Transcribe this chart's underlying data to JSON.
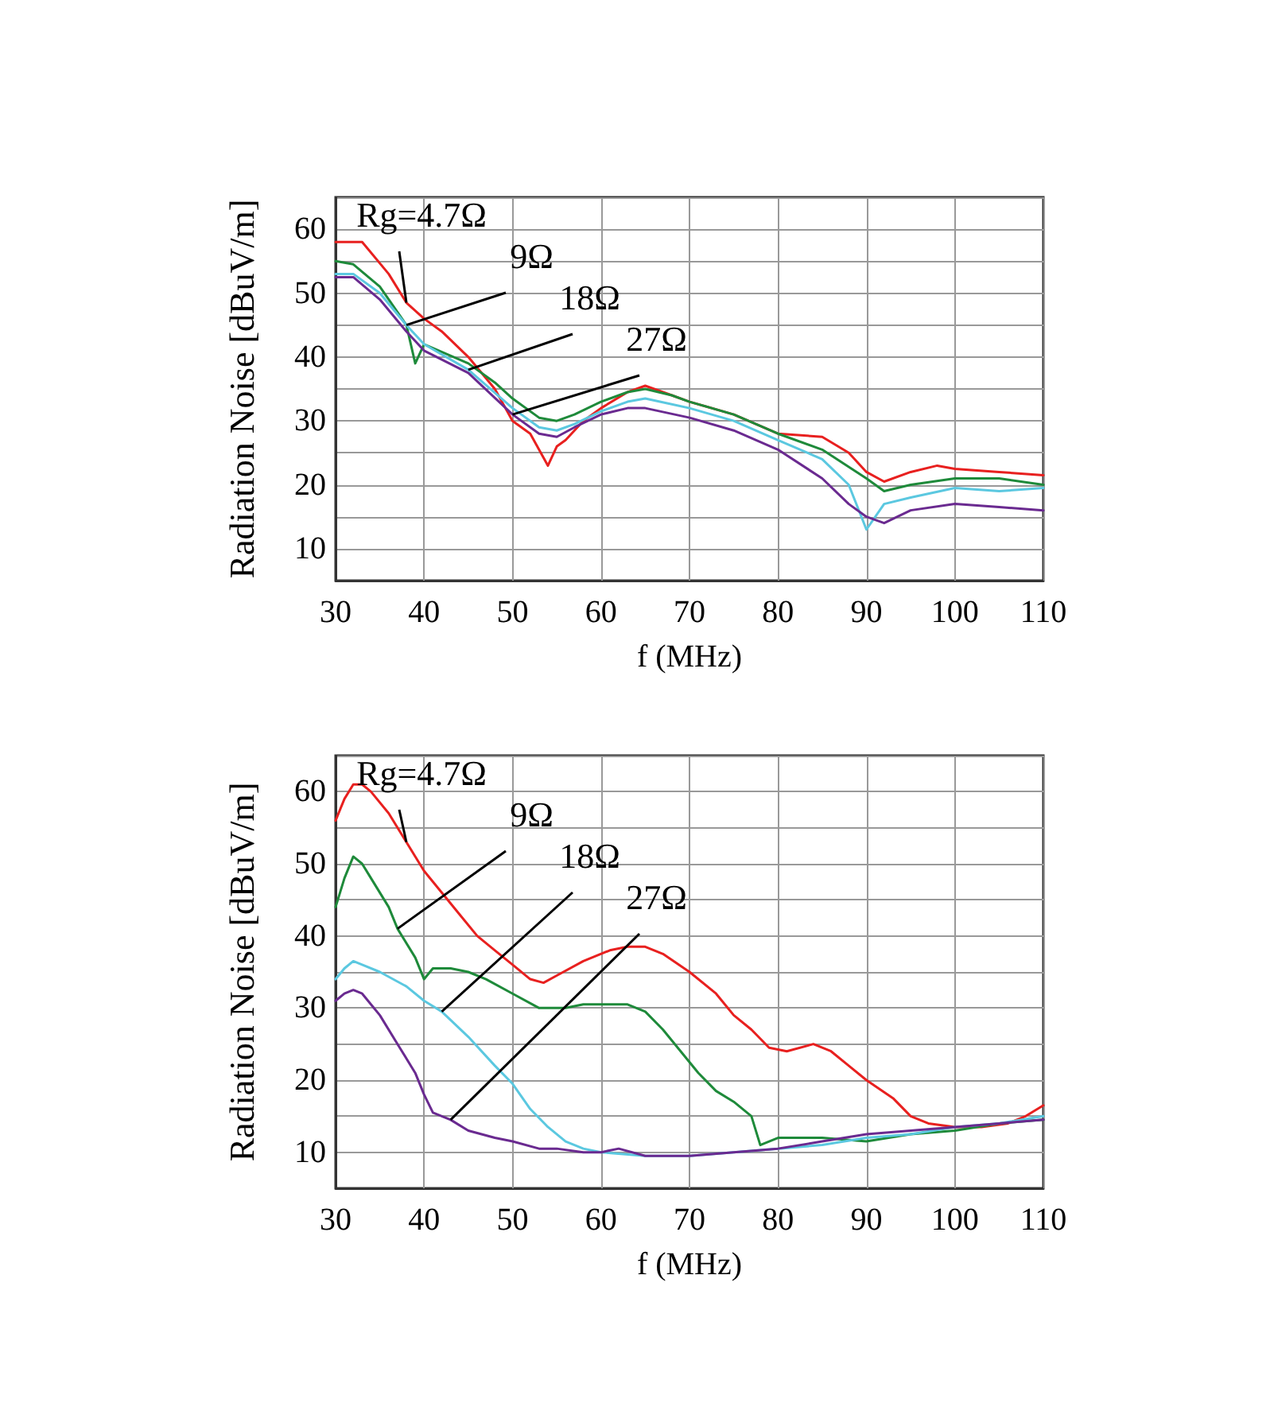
{
  "chart_data": [
    {
      "type": "line",
      "xlabel": "f (MHz)",
      "ylabel": "Radiation Noise [dBuV/m]",
      "xlim": [
        30,
        110
      ],
      "ylim": [
        5,
        65
      ],
      "xticks": [
        30,
        40,
        50,
        60,
        70,
        80,
        90,
        100,
        110
      ],
      "yticks": [
        10,
        {
          "value": 15,
          "label": null
        },
        20,
        {
          "value": 25,
          "label": null
        },
        30,
        {
          "value": 35,
          "label": null
        },
        40,
        {
          "value": 45,
          "label": null
        },
        50,
        {
          "value": 55,
          "label": null
        },
        60
      ],
      "grid": true,
      "marker": "none",
      "line_style": "solid",
      "series": [
        {
          "color": "#e8201f",
          "x": [
            30,
            33,
            36,
            38,
            40,
            42,
            45,
            48,
            50,
            52,
            54,
            55,
            56,
            58,
            60,
            63,
            65,
            68,
            70,
            75,
            80,
            85,
            88,
            90,
            92,
            95,
            98,
            100,
            105,
            110
          ],
          "values": [
            58,
            58,
            53,
            48.5,
            46,
            44,
            40,
            35,
            30,
            28,
            23,
            26,
            27,
            30,
            32,
            34.5,
            35.5,
            34,
            33,
            31,
            28,
            27.5,
            25,
            22,
            20.5,
            22,
            23,
            22.5,
            22,
            21.5
          ]
        },
        {
          "color": "#1e8a3a",
          "x": [
            30,
            32,
            35,
            38,
            39,
            40,
            45,
            48,
            50,
            53,
            55,
            57,
            60,
            63,
            65,
            68,
            70,
            75,
            80,
            85,
            90,
            92,
            95,
            100,
            105,
            110
          ],
          "values": [
            55,
            54.5,
            51,
            45,
            39,
            42,
            39,
            36,
            33.5,
            30.5,
            30,
            31,
            33,
            34.5,
            35,
            34,
            33,
            31,
            28,
            25.5,
            21,
            19,
            20,
            21,
            21,
            20
          ]
        },
        {
          "color": "#5bc8e0",
          "x": [
            30,
            32,
            35,
            38,
            40,
            45,
            50,
            53,
            55,
            57,
            60,
            63,
            65,
            70,
            75,
            80,
            85,
            88,
            90,
            92,
            95,
            100,
            105,
            110
          ],
          "values": [
            53,
            53,
            50,
            45,
            42,
            38,
            32,
            29,
            28.5,
            29.5,
            31.5,
            33,
            33.5,
            32,
            30,
            27,
            24,
            20,
            13,
            17,
            18,
            19.5,
            19,
            19.5
          ]
        },
        {
          "color": "#6a2a90",
          "x": [
            30,
            32,
            35,
            38,
            40,
            45,
            50,
            53,
            55,
            57,
            60,
            63,
            65,
            70,
            75,
            80,
            85,
            88,
            90,
            92,
            95,
            100,
            105,
            110
          ],
          "values": [
            52.5,
            52.5,
            49,
            44,
            41,
            37.5,
            31,
            28,
            27.5,
            29,
            31,
            32,
            32,
            30.5,
            28.5,
            25.5,
            21,
            17,
            15,
            14,
            16,
            17,
            16.5,
            16
          ]
        }
      ],
      "annotations": [
        {
          "text": "Rg=4.7Ω",
          "x": 38,
          "y": 48.5
        },
        {
          "text": "9Ω",
          "x": 38,
          "y": 45
        },
        {
          "text": "18Ω",
          "x": 45,
          "y": 38
        },
        {
          "text": "27Ω",
          "x": 50,
          "y": 31
        }
      ]
    },
    {
      "type": "line",
      "xlabel": "f (MHz)",
      "ylabel": "Radiation Noise [dBuV/m]",
      "xlim": [
        30,
        110
      ],
      "ylim": [
        5,
        65
      ],
      "xticks": [
        30,
        40,
        50,
        60,
        70,
        80,
        90,
        100,
        110
      ],
      "yticks": [
        10,
        {
          "value": 15,
          "label": null
        },
        20,
        {
          "value": 25,
          "label": null
        },
        30,
        {
          "value": 35,
          "label": null
        },
        40,
        {
          "value": 45,
          "label": null
        },
        50,
        {
          "value": 55,
          "label": null
        },
        60
      ],
      "grid": true,
      "marker": "none",
      "line_style": "solid",
      "series": [
        {
          "color": "#e8201f",
          "x": [
            30,
            31,
            32,
            33,
            34,
            36,
            38,
            40,
            42,
            44,
            46,
            48,
            50,
            52,
            53.5,
            55,
            58,
            61,
            63,
            65,
            67,
            70,
            73,
            75,
            77,
            79,
            81,
            84,
            86,
            88,
            90,
            93,
            95,
            97,
            100,
            103,
            106,
            108,
            110
          ],
          "values": [
            56,
            59,
            61,
            61,
            60,
            57,
            53,
            49,
            46,
            43,
            40,
            38,
            36,
            34,
            33.5,
            34.5,
            36.5,
            38,
            38.5,
            38.5,
            37.5,
            35,
            32,
            29,
            27,
            24.5,
            24,
            25,
            24,
            22,
            20,
            17.5,
            15,
            14,
            13.5,
            13.5,
            14,
            15,
            16.5
          ]
        },
        {
          "color": "#1e8a3a",
          "x": [
            30,
            31,
            32,
            33,
            34,
            36,
            37,
            39,
            40,
            41,
            43,
            45,
            47,
            50,
            53,
            56,
            58,
            60,
            63,
            65,
            67,
            69,
            71,
            73,
            75,
            77,
            78,
            80,
            85,
            90,
            95,
            100,
            105,
            110
          ],
          "values": [
            44,
            48,
            51,
            50,
            48,
            44,
            41,
            37,
            34,
            35.5,
            35.5,
            35,
            34,
            32,
            30,
            30,
            30.5,
            30.5,
            30.5,
            29.5,
            27,
            24,
            21,
            18.5,
            17,
            15,
            11,
            12,
            12,
            11.5,
            12.5,
            13,
            14,
            14.5
          ]
        },
        {
          "color": "#5bc8e0",
          "x": [
            30,
            31,
            32,
            33,
            35,
            38,
            40,
            42,
            45,
            48,
            50,
            52,
            54,
            56,
            58,
            60,
            65,
            70,
            75,
            80,
            85,
            90,
            95,
            100,
            105,
            110
          ],
          "values": [
            34,
            35.5,
            36.5,
            36,
            35,
            33,
            31,
            29.5,
            26,
            22,
            19.5,
            16,
            13.5,
            11.5,
            10.5,
            10,
            9.5,
            9.5,
            10,
            10.5,
            11,
            12,
            12.5,
            13.5,
            14,
            15
          ]
        },
        {
          "color": "#6a2a90",
          "x": [
            30,
            31,
            32,
            33,
            35,
            37,
            39,
            40,
            41,
            43,
            45,
            48,
            50,
            53,
            55,
            58,
            60,
            62,
            65,
            70,
            75,
            80,
            85,
            90,
            95,
            100,
            105,
            110
          ],
          "values": [
            31,
            32,
            32.5,
            32,
            29,
            25,
            21,
            18,
            15.5,
            14.5,
            13,
            12,
            11.5,
            10.5,
            10.5,
            10,
            10,
            10.5,
            9.5,
            9.5,
            10,
            10.5,
            11.5,
            12.5,
            13,
            13.5,
            14,
            14.5
          ]
        }
      ],
      "annotations": [
        {
          "text": "Rg=4.7Ω",
          "x": 38,
          "y": 53
        },
        {
          "text": "9Ω",
          "x": 37,
          "y": 41
        },
        {
          "text": "18Ω",
          "x": 42,
          "y": 29.5
        },
        {
          "text": "27Ω",
          "x": 43,
          "y": 14.5
        }
      ]
    }
  ]
}
